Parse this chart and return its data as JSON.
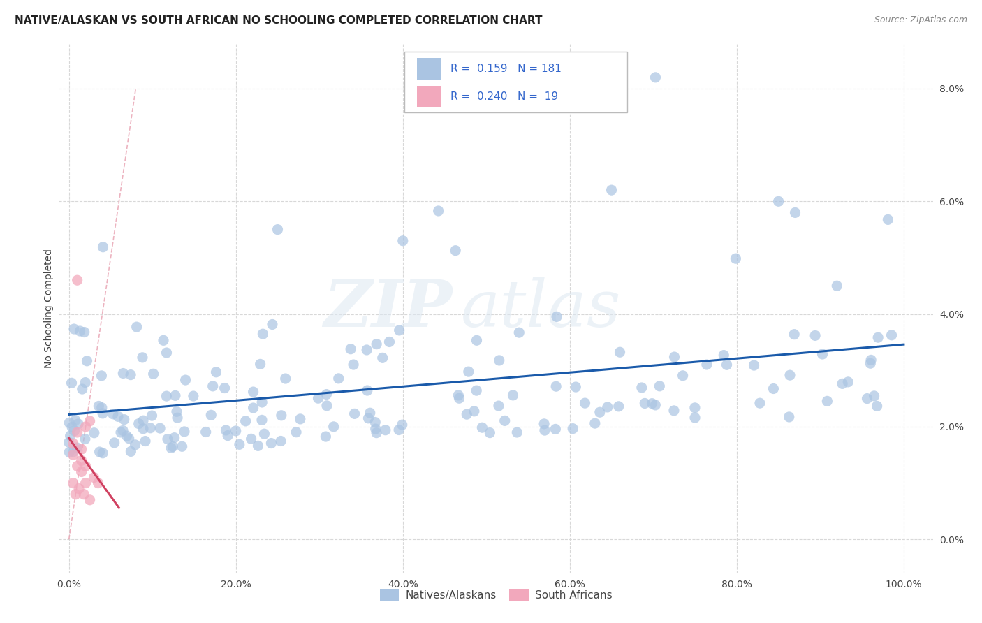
{
  "title": "NATIVE/ALASKAN VS SOUTH AFRICAN NO SCHOOLING COMPLETED CORRELATION CHART",
  "source": "Source: ZipAtlas.com",
  "ylabel_label": "No Schooling Completed",
  "blue_color": "#aac4e2",
  "pink_color": "#f2a8bc",
  "trend_blue": "#1a5aaa",
  "trend_pink": "#d04060",
  "diagonal_color": "#e0a0b0",
  "watermark_zip": "ZIP",
  "watermark_atlas": "atlas",
  "legend_r_blue": "0.159",
  "legend_n_blue": "181",
  "legend_r_pink": "0.240",
  "legend_n_pink": "19",
  "background_color": "#ffffff",
  "grid_color": "#d8d8d8",
  "title_fontsize": 11,
  "axis_label_fontsize": 10,
  "tick_fontsize": 10,
  "source_fontsize": 9
}
